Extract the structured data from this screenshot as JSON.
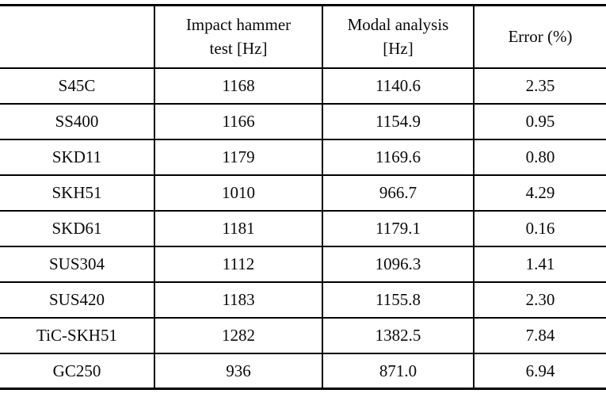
{
  "table": {
    "columns": [
      {
        "label": ""
      },
      {
        "label": "Impact hammer\ntest [Hz]"
      },
      {
        "label": "Modal analysis\n[Hz]"
      },
      {
        "label": "Error (%)"
      }
    ],
    "rows": [
      [
        "S45C",
        "1168",
        "1140.6",
        "2.35"
      ],
      [
        "SS400",
        "1166",
        "1154.9",
        "0.95"
      ],
      [
        "SKD11",
        "1179",
        "1169.6",
        "0.80"
      ],
      [
        "SKH51",
        "1010",
        "966.7",
        "4.29"
      ],
      [
        "SKD61",
        "1181",
        "1179.1",
        "0.16"
      ],
      [
        "SUS304",
        "1112",
        "1096.3",
        "1.41"
      ],
      [
        "SUS420",
        "1183",
        "1155.8",
        "2.30"
      ],
      [
        "TiC-SKH51",
        "1282",
        "1382.5",
        "7.84"
      ],
      [
        "GC250",
        "936",
        "871.0",
        "6.94"
      ]
    ]
  },
  "colors": {
    "rule": "#000000",
    "text": "#0a0a0a",
    "background": "#ffffff"
  }
}
